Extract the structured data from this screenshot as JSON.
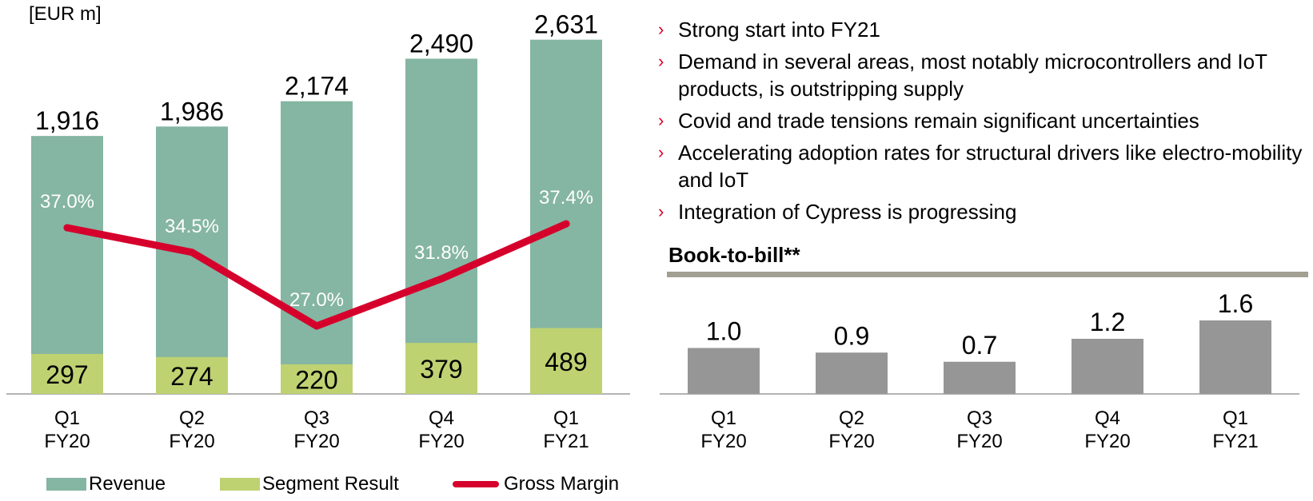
{
  "chart_data": [
    {
      "type": "bar",
      "unit_label": "[EUR m]",
      "categories": [
        "Q1 FY20",
        "Q2 FY20",
        "Q3 FY20",
        "Q4 FY20",
        "Q1 FY21"
      ],
      "series": [
        {
          "name": "Revenue",
          "kind": "bar",
          "color": "#85b5a3",
          "values": [
            1916,
            1986,
            2174,
            2490,
            2631
          ],
          "labels": [
            "1,916",
            "1,986",
            "2,174",
            "2,490",
            "2,631"
          ]
        },
        {
          "name": "Segment Result",
          "kind": "bar",
          "color": "#bed272",
          "values": [
            297,
            274,
            220,
            379,
            489
          ],
          "labels": [
            "297",
            "274",
            "220",
            "379",
            "489"
          ]
        },
        {
          "name": "Gross Margin",
          "kind": "line",
          "color": "#d5002b",
          "values": [
            37.0,
            34.5,
            27.0,
            31.8,
            37.4
          ],
          "labels": [
            "37.0%",
            "34.5%",
            "27.0%",
            "31.8%",
            "37.4%"
          ]
        }
      ],
      "ylim": [
        0,
        3000
      ],
      "legend_position": "bottom",
      "grid": false
    },
    {
      "type": "bar",
      "title": "Book-to-bill**",
      "categories": [
        "Q1 FY20",
        "Q2 FY20",
        "Q3 FY20",
        "Q4 FY20",
        "Q1 FY21"
      ],
      "values": [
        1.0,
        0.9,
        0.7,
        1.2,
        1.6
      ],
      "labels": [
        "1.0",
        "0.9",
        "0.7",
        "1.2",
        "1.6"
      ],
      "color": "#969696",
      "ylim": [
        0,
        1.6
      ],
      "grid": false
    }
  ],
  "bullets": [
    "Strong start into FY21",
    "Demand in several areas, most notably microcontrollers and IoT products, is outstripping supply",
    "Covid and trade tensions remain significant uncertainties",
    "Accelerating adoption rates for structural drivers like electro-mobility and IoT",
    "Integration of Cypress is progressing"
  ],
  "bullet_marker": "›"
}
